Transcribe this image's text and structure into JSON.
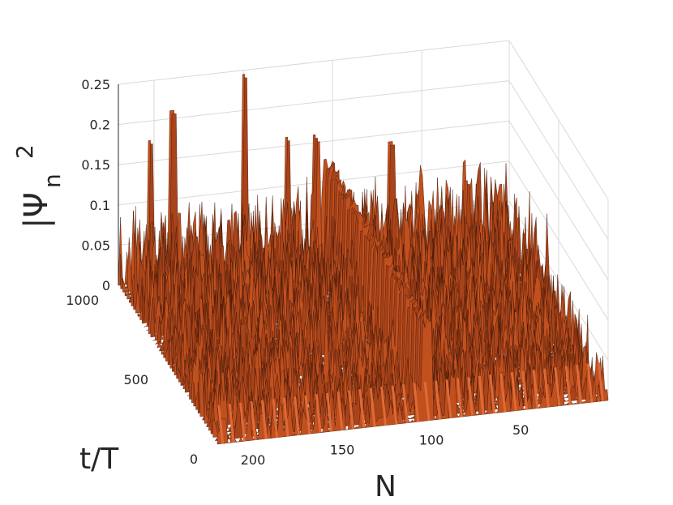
{
  "chart_data": {
    "type": "surface",
    "title": "",
    "zlabel": "|Ψ_n|^2",
    "zlabel_main": "|Ψ",
    "zlabel_sub": "n",
    "zlabel_sup": "2",
    "xlabel": "N",
    "ylabel": "t/T",
    "xlim": [
      1,
      220
    ],
    "ylim": [
      0,
      1000
    ],
    "zlim": [
      0,
      0.25
    ],
    "x_ticks": [
      {
        "value": 50,
        "label": "50"
      },
      {
        "value": 100,
        "label": "100"
      },
      {
        "value": 150,
        "label": "150"
      },
      {
        "value": 200,
        "label": "200"
      }
    ],
    "y_ticks": [
      {
        "value": 0,
        "label": "0"
      },
      {
        "value": 500,
        "label": "500"
      },
      {
        "value": 1000,
        "label": "1000"
      }
    ],
    "z_ticks": [
      {
        "value": 0,
        "label": "0"
      },
      {
        "value": 0.05,
        "label": "0.05"
      },
      {
        "value": 0.1,
        "label": "0.1"
      },
      {
        "value": 0.15,
        "label": "0.15"
      },
      {
        "value": 0.2,
        "label": "0.2"
      },
      {
        "value": 0.25,
        "label": "0.25"
      }
    ],
    "grid": true,
    "surface_color": "#c1501f",
    "peak_values": [
      {
        "N": 150,
        "t": 1000,
        "value": 0.245
      },
      {
        "N": 190,
        "t": 1000,
        "value": 0.21
      },
      {
        "N": 205,
        "t": 950,
        "value": 0.185
      },
      {
        "N": 128,
        "t": 950,
        "value": 0.17
      },
      {
        "N": 110,
        "t": 980,
        "value": 0.16
      },
      {
        "N": 70,
        "t": 950,
        "value": 0.15
      },
      {
        "N": 30,
        "t": 900,
        "value": 0.1
      }
    ],
    "plateau_N": 103,
    "plateau_value": 0.13
  }
}
